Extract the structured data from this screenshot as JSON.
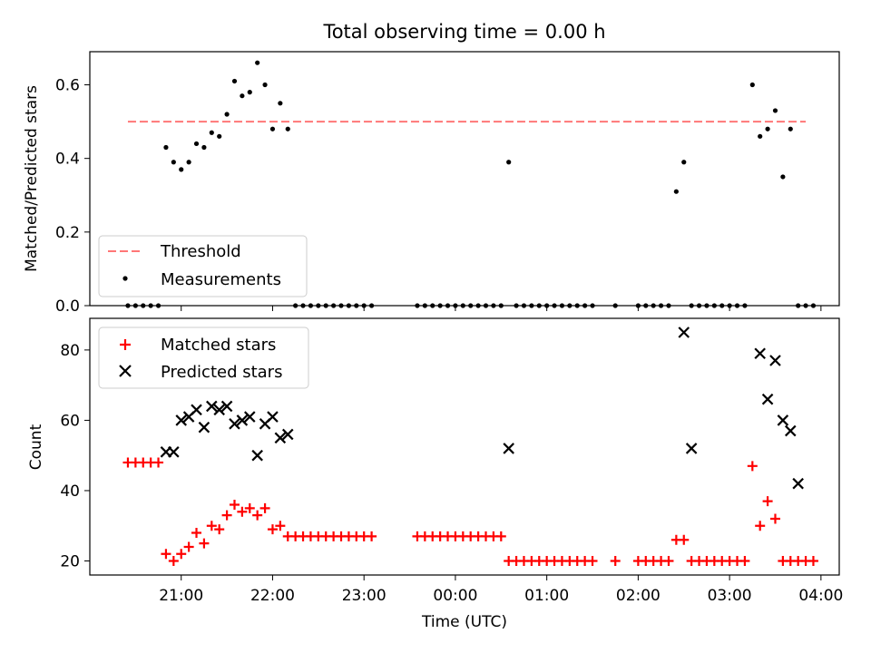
{
  "chart_data": [
    {
      "type": "scatter",
      "title": "Total observing time = 0.00 h",
      "xlabel": "",
      "ylabel": "Matched/Predicted stars",
      "ylim": [
        0,
        0.69
      ],
      "yticks": [
        0.0,
        0.2,
        0.4,
        0.6
      ],
      "ytick_labels": [
        "0.0",
        "0.2",
        "0.4",
        "0.6"
      ],
      "legend": {
        "position": "lower-left",
        "entries": [
          "Threshold",
          "Measurements"
        ]
      },
      "threshold": {
        "name": "Threshold",
        "value": 0.5,
        "x_start": "20:25",
        "x_end": "03:50",
        "color": "#ff7777"
      },
      "series": [
        {
          "name": "Measurements",
          "color": "#000000",
          "x": [
            "20:25",
            "20:30",
            "20:35",
            "20:40",
            "20:45",
            "20:50",
            "20:55",
            "21:00",
            "21:05",
            "21:10",
            "21:15",
            "21:20",
            "21:25",
            "21:30",
            "21:35",
            "21:40",
            "21:45",
            "21:50",
            "21:55",
            "22:00",
            "22:05",
            "22:10",
            "22:15",
            "22:20",
            "22:25",
            "22:30",
            "22:35",
            "22:40",
            "22:45",
            "22:50",
            "22:55",
            "23:00",
            "23:05",
            "23:35",
            "23:40",
            "23:45",
            "23:50",
            "23:55",
            "00:00",
            "00:05",
            "00:10",
            "00:15",
            "00:20",
            "00:25",
            "00:30",
            "00:35",
            "00:40",
            "00:45",
            "00:50",
            "00:55",
            "01:00",
            "01:05",
            "01:10",
            "01:15",
            "01:20",
            "01:25",
            "01:30",
            "01:45",
            "02:00",
            "02:05",
            "02:10",
            "02:15",
            "02:20",
            "02:25",
            "02:30",
            "02:35",
            "02:40",
            "02:45",
            "02:50",
            "02:55",
            "03:00",
            "03:05",
            "03:10",
            "03:15",
            "03:20",
            "03:25",
            "03:30",
            "03:35",
            "03:40",
            "03:45",
            "03:50",
            "03:55"
          ],
          "y": [
            0,
            0,
            0,
            0,
            0,
            0.43,
            0.39,
            0.37,
            0.39,
            0.44,
            0.43,
            0.47,
            0.46,
            0.52,
            0.61,
            0.57,
            0.58,
            0.66,
            0.6,
            0.48,
            0.55,
            0.48,
            0,
            0,
            0,
            0,
            0,
            0,
            0,
            0,
            0,
            0,
            0,
            0,
            0,
            0,
            0,
            0,
            0,
            0,
            0,
            0,
            0,
            0,
            0,
            0.39,
            0,
            0,
            0,
            0,
            0,
            0,
            0,
            0,
            0,
            0,
            0,
            0,
            0,
            0,
            0,
            0,
            0,
            0.31,
            0.39,
            0,
            0,
            0,
            0,
            0,
            0,
            0,
            0,
            0.6,
            0.46,
            0.48,
            0.53,
            0.35,
            0.48,
            0,
            0,
            0
          ]
        }
      ]
    },
    {
      "type": "scatter",
      "title": "",
      "xlabel": "Time (UTC)",
      "ylabel": "Count",
      "ylim": [
        16,
        89
      ],
      "yticks": [
        20,
        40,
        60,
        80
      ],
      "ytick_labels": [
        "20",
        "40",
        "60",
        "80"
      ],
      "xlim": [
        "20:00",
        "04:12"
      ],
      "xtick_labels": [
        "21:00",
        "22:00",
        "23:00",
        "00:00",
        "01:00",
        "02:00",
        "03:00",
        "04:00"
      ],
      "legend": {
        "position": "upper-left",
        "entries": [
          "Matched stars",
          "Predicted stars"
        ]
      },
      "series": [
        {
          "name": "Matched stars",
          "color": "#ff0000",
          "marker": "plus",
          "x": [
            "20:25",
            "20:30",
            "20:35",
            "20:40",
            "20:45",
            "20:50",
            "20:55",
            "21:00",
            "21:05",
            "21:10",
            "21:15",
            "21:20",
            "21:25",
            "21:30",
            "21:35",
            "21:40",
            "21:45",
            "21:50",
            "21:55",
            "22:00",
            "22:05",
            "22:10",
            "22:15",
            "22:20",
            "22:25",
            "22:30",
            "22:35",
            "22:40",
            "22:45",
            "22:50",
            "22:55",
            "23:00",
            "23:05",
            "23:35",
            "23:40",
            "23:45",
            "23:50",
            "23:55",
            "00:00",
            "00:05",
            "00:10",
            "00:15",
            "00:20",
            "00:25",
            "00:30",
            "00:35",
            "00:40",
            "00:45",
            "00:50",
            "00:55",
            "01:00",
            "01:05",
            "01:10",
            "01:15",
            "01:20",
            "01:25",
            "01:30",
            "01:45",
            "02:00",
            "02:05",
            "02:10",
            "02:15",
            "02:20",
            "02:25",
            "02:30",
            "02:35",
            "02:40",
            "02:45",
            "02:50",
            "02:55",
            "03:00",
            "03:05",
            "03:10",
            "03:15",
            "03:20",
            "03:25",
            "03:30",
            "03:35",
            "03:40",
            "03:45",
            "03:50",
            "03:55"
          ],
          "y": [
            48,
            48,
            48,
            48,
            48,
            22,
            20,
            22,
            24,
            28,
            25,
            30,
            29,
            33,
            36,
            34,
            35,
            33,
            35,
            29,
            30,
            27,
            27,
            27,
            27,
            27,
            27,
            27,
            27,
            27,
            27,
            27,
            27,
            27,
            27,
            27,
            27,
            27,
            27,
            27,
            27,
            27,
            27,
            27,
            27,
            20,
            20,
            20,
            20,
            20,
            20,
            20,
            20,
            20,
            20,
            20,
            20,
            20,
            20,
            20,
            20,
            20,
            20,
            26,
            26,
            20,
            20,
            20,
            20,
            20,
            20,
            20,
            20,
            47,
            30,
            37,
            32,
            20,
            20,
            20,
            20,
            20
          ]
        },
        {
          "name": "Predicted stars",
          "color": "#000000",
          "marker": "x",
          "x": [
            "20:50",
            "20:55",
            "21:00",
            "21:05",
            "21:10",
            "21:15",
            "21:20",
            "21:25",
            "21:30",
            "21:35",
            "21:40",
            "21:45",
            "21:50",
            "21:55",
            "22:00",
            "22:05",
            "22:10",
            "00:35",
            "02:30",
            "02:35",
            "03:20",
            "03:25",
            "03:30",
            "03:35",
            "03:40",
            "03:45"
          ],
          "y": [
            51,
            51,
            60,
            61,
            63,
            58,
            64,
            63,
            64,
            59,
            60,
            61,
            50,
            59,
            61,
            55,
            56,
            52,
            85,
            52,
            79,
            66,
            77,
            60,
            57,
            42
          ]
        }
      ]
    }
  ]
}
